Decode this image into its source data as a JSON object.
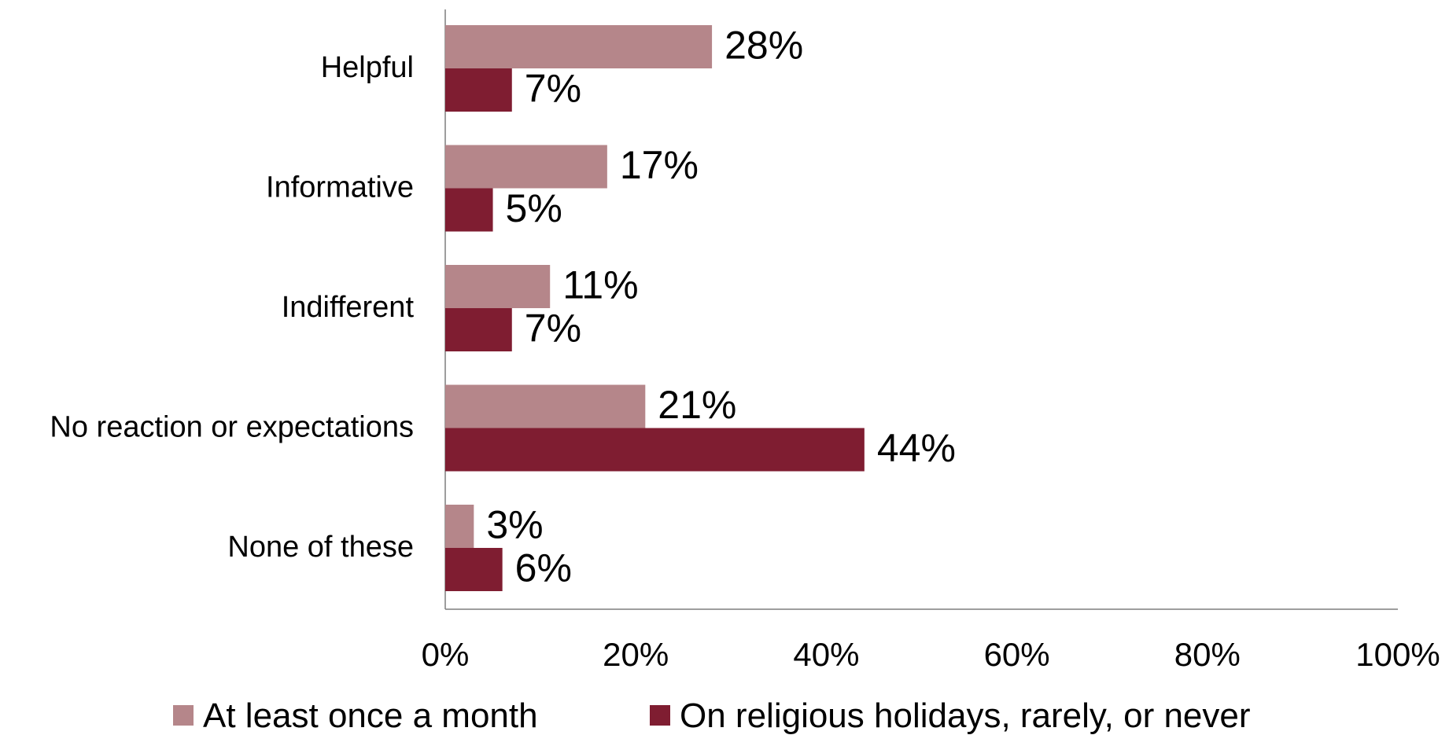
{
  "chart_data": {
    "type": "bar",
    "orientation": "horizontal",
    "categories": [
      "Helpful",
      "Informative",
      "Indifferent",
      "No reaction or expectations",
      "None of these"
    ],
    "series": [
      {
        "name": "At least once a month",
        "values": [
          28,
          17,
          11,
          21,
          3
        ],
        "labels": [
          "28%",
          "17%",
          "11%",
          "21%",
          "3%"
        ],
        "color": "#b5868a"
      },
      {
        "name": "On religious holidays, rarely, or never",
        "values": [
          7,
          5,
          7,
          44,
          6
        ],
        "labels": [
          "7%",
          "5%",
          "7%",
          "44%",
          "6%"
        ],
        "color": "#7f1d31"
      }
    ],
    "xlim": [
      0,
      100
    ],
    "x_ticks": [
      0,
      20,
      40,
      60,
      80,
      100
    ],
    "x_tick_labels": [
      "0%",
      "20%",
      "40%",
      "60%",
      "80%",
      "100%"
    ],
    "grid": false,
    "legend_position": "bottom",
    "title": "",
    "xlabel": "",
    "ylabel": ""
  }
}
